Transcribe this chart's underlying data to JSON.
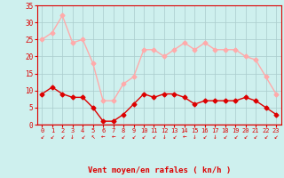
{
  "hours": [
    0,
    1,
    2,
    3,
    4,
    5,
    6,
    7,
    8,
    9,
    10,
    11,
    12,
    13,
    14,
    15,
    16,
    17,
    18,
    19,
    20,
    21,
    22,
    23
  ],
  "wind_avg": [
    9,
    11,
    9,
    8,
    8,
    5,
    1,
    1,
    3,
    6,
    9,
    8,
    9,
    9,
    8,
    6,
    7,
    7,
    7,
    7,
    8,
    7,
    5,
    3
  ],
  "wind_gust": [
    25,
    27,
    32,
    24,
    25,
    18,
    7,
    7,
    12,
    14,
    22,
    22,
    20,
    22,
    24,
    22,
    24,
    22,
    22,
    22,
    20,
    19,
    14,
    9
  ],
  "avg_color": "#dd0000",
  "gust_color": "#ffaaaa",
  "background_color": "#cef0ee",
  "grid_color": "#aacccc",
  "xlabel": "Vent moyen/en rafales ( kn/h )",
  "xlabel_color": "#dd0000",
  "tick_color": "#dd0000",
  "ylim": [
    0,
    35
  ],
  "yticks": [
    0,
    5,
    10,
    15,
    20,
    25,
    30,
    35
  ],
  "marker": "D",
  "markersize": 2.5,
  "linewidth": 1.0,
  "arrow_chars": [
    "↙",
    "↙",
    "↙",
    "↓",
    "↙",
    "↖",
    "←",
    "←",
    "↙",
    "↙",
    "↙",
    "↙",
    "↓",
    "↙",
    "←",
    "↓",
    "↙",
    "↓",
    "↙",
    "↙",
    "↙",
    "↙",
    "↙",
    "↙"
  ]
}
